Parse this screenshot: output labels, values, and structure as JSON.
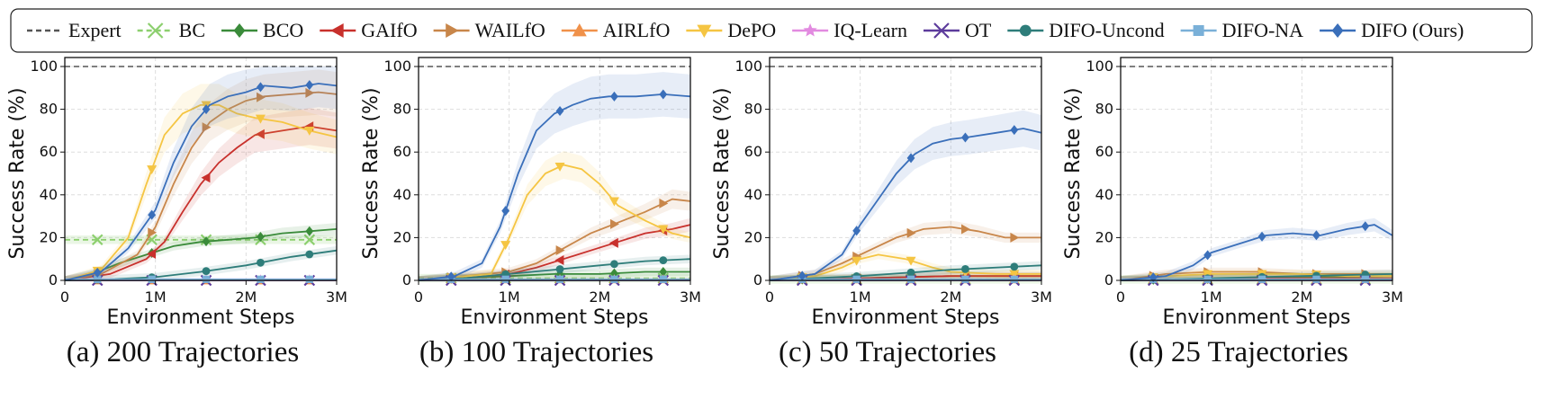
{
  "legend": [
    {
      "name": "Expert",
      "color": "#555555",
      "marker": "none",
      "dash": true
    },
    {
      "name": "BC",
      "color": "#8ccf6e",
      "marker": "x",
      "dash": true
    },
    {
      "name": "BCO",
      "color": "#3a8b3a",
      "marker": "diamond"
    },
    {
      "name": "GAIfO",
      "color": "#c8302c",
      "marker": "tri-left"
    },
    {
      "name": "WAILfO",
      "color": "#c8864a",
      "marker": "tri-right"
    },
    {
      "name": "AIRLfO",
      "color": "#f0914a",
      "marker": "tri-up"
    },
    {
      "name": "DePO",
      "color": "#f5c542",
      "marker": "tri-down"
    },
    {
      "name": "IQ-Learn",
      "color": "#e28ae0",
      "marker": "star"
    },
    {
      "name": "OT",
      "color": "#5c3b9c",
      "marker": "x"
    },
    {
      "name": "DIFO-Uncond",
      "color": "#2e7d7a",
      "marker": "circle"
    },
    {
      "name": "DIFO-NA",
      "color": "#7ab0d8",
      "marker": "square"
    },
    {
      "name": "DIFO (Ours)",
      "color": "#3a6fba",
      "marker": "diamond"
    }
  ],
  "chart_data": [
    {
      "type": "line",
      "title": "(a) 200 Trajectories",
      "xlabel": "Environment Steps",
      "ylabel": "Success Rate (%)",
      "xticks": [
        "0",
        "1M",
        "2M",
        "3M"
      ],
      "yticks": [
        "0",
        "20",
        "40",
        "60",
        "80",
        "100"
      ],
      "xlim": [
        0,
        3
      ],
      "ylim": [
        0,
        100
      ],
      "grid": true,
      "series": [
        {
          "name": "Expert",
          "x": [
            0,
            3
          ],
          "y": [
            100,
            100
          ]
        },
        {
          "name": "BC",
          "x": [
            0,
            3
          ],
          "y": [
            19,
            19
          ]
        },
        {
          "name": "BCO",
          "x": [
            0,
            0.3,
            0.6,
            0.9,
            1.2,
            1.5,
            1.8,
            2.1,
            2.4,
            2.7,
            3.0
          ],
          "y": [
            0,
            3,
            8,
            12,
            16,
            18,
            19,
            20,
            22,
            23,
            24
          ]
        },
        {
          "name": "GAIfO",
          "x": [
            0,
            0.5,
            0.9,
            1.1,
            1.3,
            1.5,
            1.7,
            1.9,
            2.1,
            2.4,
            2.7,
            3.0
          ],
          "y": [
            0,
            3,
            10,
            18,
            32,
            45,
            55,
            62,
            68,
            70,
            72,
            70
          ]
        },
        {
          "name": "WAILfO",
          "x": [
            0,
            0.4,
            0.8,
            1.0,
            1.2,
            1.4,
            1.6,
            1.8,
            2.0,
            2.2,
            2.5,
            2.8,
            3.0
          ],
          "y": [
            0,
            3,
            12,
            25,
            45,
            62,
            74,
            80,
            84,
            86,
            87,
            88,
            87
          ]
        },
        {
          "name": "AIRLfO",
          "x": [
            0,
            3
          ],
          "y": [
            0,
            0
          ]
        },
        {
          "name": "DePO",
          "x": [
            0,
            0.4,
            0.7,
            0.9,
            1.1,
            1.3,
            1.5,
            1.7,
            1.9,
            2.1,
            2.4,
            2.7,
            3.0
          ],
          "y": [
            0,
            5,
            20,
            45,
            68,
            78,
            82,
            82,
            78,
            76,
            74,
            70,
            67
          ]
        },
        {
          "name": "IQ-Learn",
          "x": [
            0,
            3
          ],
          "y": [
            0.5,
            0.5
          ]
        },
        {
          "name": "OT",
          "x": [
            0,
            3
          ],
          "y": [
            0,
            0
          ]
        },
        {
          "name": "DIFO-Uncond",
          "x": [
            0,
            0.5,
            1.0,
            1.5,
            2.0,
            2.5,
            3.0
          ],
          "y": [
            0,
            0.5,
            1.5,
            4,
            7,
            11,
            14
          ]
        },
        {
          "name": "DIFO-NA",
          "x": [
            0,
            3
          ],
          "y": [
            0.5,
            0.5
          ]
        },
        {
          "name": "DIFO (Ours)",
          "x": [
            0,
            0.4,
            0.7,
            1.0,
            1.2,
            1.4,
            1.6,
            1.8,
            2.0,
            2.2,
            2.5,
            2.8,
            3.0
          ],
          "y": [
            0,
            4,
            15,
            33,
            55,
            72,
            82,
            86,
            88,
            91,
            90,
            92,
            91
          ]
        }
      ]
    },
    {
      "type": "line",
      "title": "(b) 100 Trajectories",
      "xlabel": "Environment Steps",
      "ylabel": "Success Rate (%)",
      "xticks": [
        "0",
        "1M",
        "2M",
        "3M"
      ],
      "yticks": [
        "0",
        "20",
        "40",
        "60",
        "80",
        "100"
      ],
      "xlim": [
        0,
        3
      ],
      "ylim": [
        0,
        100
      ],
      "grid": true,
      "series": [
        {
          "name": "Expert",
          "x": [
            0,
            3
          ],
          "y": [
            100,
            100
          ]
        },
        {
          "name": "BC",
          "x": [
            0,
            3
          ],
          "y": [
            1,
            1
          ]
        },
        {
          "name": "BCO",
          "x": [
            0,
            0.5,
            1.0,
            1.5,
            2.0,
            2.5,
            3.0
          ],
          "y": [
            0,
            1,
            2,
            3,
            3,
            4,
            4
          ]
        },
        {
          "name": "GAIfO",
          "x": [
            0,
            0.5,
            1.0,
            1.3,
            1.6,
            1.9,
            2.2,
            2.5,
            2.8,
            3.0
          ],
          "y": [
            0,
            1,
            3,
            6,
            10,
            14,
            18,
            22,
            24,
            26
          ]
        },
        {
          "name": "WAILfO",
          "x": [
            0,
            0.5,
            1.0,
            1.3,
            1.6,
            1.9,
            2.2,
            2.5,
            2.8,
            3.0
          ],
          "y": [
            0,
            2,
            4,
            8,
            15,
            22,
            27,
            32,
            38,
            37
          ]
        },
        {
          "name": "AIRLfO",
          "x": [
            0,
            3
          ],
          "y": [
            0.5,
            0.5
          ]
        },
        {
          "name": "DePO",
          "x": [
            0,
            0.8,
            1.0,
            1.2,
            1.4,
            1.6,
            1.8,
            2.0,
            2.2,
            2.5,
            2.8,
            3.0
          ],
          "y": [
            0,
            3,
            20,
            40,
            50,
            54,
            52,
            45,
            35,
            28,
            22,
            20
          ]
        },
        {
          "name": "IQ-Learn",
          "x": [
            0,
            3
          ],
          "y": [
            0.5,
            0.5
          ]
        },
        {
          "name": "OT",
          "x": [
            0,
            3
          ],
          "y": [
            0,
            0
          ]
        },
        {
          "name": "DIFO-Uncond",
          "x": [
            0,
            0.5,
            1.0,
            1.5,
            2.0,
            2.5,
            3.0
          ],
          "y": [
            0,
            1,
            3,
            5,
            7,
            9,
            10
          ]
        },
        {
          "name": "DIFO-NA",
          "x": [
            0,
            3
          ],
          "y": [
            0.5,
            0.5
          ]
        },
        {
          "name": "DIFO (Ours)",
          "x": [
            0,
            0.4,
            0.7,
            0.9,
            1.1,
            1.3,
            1.5,
            1.7,
            1.9,
            2.1,
            2.4,
            2.7,
            3.0
          ],
          "y": [
            0,
            2,
            8,
            25,
            50,
            70,
            78,
            82,
            85,
            86,
            86,
            87,
            86
          ]
        }
      ]
    },
    {
      "type": "line",
      "title": "(c) 50 Trajectories",
      "xlabel": "Environment Steps",
      "ylabel": "Success Rate (%)",
      "xticks": [
        "0",
        "1M",
        "2M",
        "3M"
      ],
      "yticks": [
        "0",
        "20",
        "40",
        "60",
        "80",
        "100"
      ],
      "xlim": [
        0,
        3
      ],
      "ylim": [
        0,
        100
      ],
      "grid": true,
      "series": [
        {
          "name": "Expert",
          "x": [
            0,
            3
          ],
          "y": [
            100,
            100
          ]
        },
        {
          "name": "BC",
          "x": [
            0,
            3
          ],
          "y": [
            0.5,
            0.5
          ]
        },
        {
          "name": "BCO",
          "x": [
            0,
            1.0,
            2.0,
            3.0
          ],
          "y": [
            0,
            1,
            2,
            2
          ]
        },
        {
          "name": "GAIfO",
          "x": [
            0,
            1.0,
            2.0,
            3.0
          ],
          "y": [
            0,
            1,
            2,
            2
          ]
        },
        {
          "name": "WAILfO",
          "x": [
            0,
            0.5,
            0.8,
            1.1,
            1.4,
            1.7,
            2.0,
            2.3,
            2.6,
            3.0
          ],
          "y": [
            0,
            3,
            8,
            14,
            20,
            24,
            25,
            23,
            20,
            20
          ]
        },
        {
          "name": "AIRLfO",
          "x": [
            0,
            3
          ],
          "y": [
            0.5,
            0.5
          ]
        },
        {
          "name": "DePO",
          "x": [
            0,
            0.5,
            0.8,
            1.0,
            1.2,
            1.5,
            1.8,
            2.0,
            2.5,
            3.0
          ],
          "y": [
            0,
            2,
            6,
            10,
            12,
            10,
            6,
            4,
            3,
            3
          ]
        },
        {
          "name": "IQ-Learn",
          "x": [
            0,
            3
          ],
          "y": [
            0.5,
            0.5
          ]
        },
        {
          "name": "OT",
          "x": [
            0,
            3
          ],
          "y": [
            0,
            0
          ]
        },
        {
          "name": "DIFO-Uncond",
          "x": [
            0,
            1.0,
            2.0,
            3.0
          ],
          "y": [
            0,
            2,
            5,
            7
          ]
        },
        {
          "name": "DIFO-NA",
          "x": [
            0,
            3
          ],
          "y": [
            0.5,
            0.5
          ]
        },
        {
          "name": "DIFO (Ours)",
          "x": [
            0,
            0.5,
            0.8,
            1.0,
            1.2,
            1.4,
            1.6,
            1.8,
            2.0,
            2.2,
            2.5,
            2.8,
            3.0
          ],
          "y": [
            0,
            3,
            12,
            26,
            38,
            50,
            59,
            64,
            66,
            67,
            69,
            71,
            69
          ]
        }
      ]
    },
    {
      "type": "line",
      "title": "(d) 25 Trajectories",
      "xlabel": "Environment Steps",
      "ylabel": "Success Rate (%)",
      "xticks": [
        "0",
        "1M",
        "2M",
        "3M"
      ],
      "yticks": [
        "0",
        "20",
        "40",
        "60",
        "80",
        "100"
      ],
      "xlim": [
        0,
        3
      ],
      "ylim": [
        0,
        100
      ],
      "grid": true,
      "series": [
        {
          "name": "Expert",
          "x": [
            0,
            3
          ],
          "y": [
            100,
            100
          ]
        },
        {
          "name": "BC",
          "x": [
            0,
            3
          ],
          "y": [
            0.5,
            0.5
          ]
        },
        {
          "name": "BCO",
          "x": [
            0,
            1.5,
            3.0
          ],
          "y": [
            0,
            1,
            2
          ]
        },
        {
          "name": "GAIfO",
          "x": [
            0,
            1.5,
            3.0
          ],
          "y": [
            0,
            1,
            1
          ]
        },
        {
          "name": "WAILfO",
          "x": [
            0,
            0.5,
            1.0,
            1.5,
            2.0,
            2.5,
            3.0
          ],
          "y": [
            0,
            3,
            4,
            4,
            3,
            3,
            3
          ]
        },
        {
          "name": "AIRLfO",
          "x": [
            0,
            3
          ],
          "y": [
            0.5,
            0.5
          ]
        },
        {
          "name": "DePO",
          "x": [
            0,
            0.5,
            1.0,
            1.5,
            2.0,
            2.5,
            3.0
          ],
          "y": [
            0,
            2,
            3,
            3,
            3,
            2,
            2
          ]
        },
        {
          "name": "IQ-Learn",
          "x": [
            0,
            3
          ],
          "y": [
            0.5,
            0.5
          ]
        },
        {
          "name": "OT",
          "x": [
            0,
            3
          ],
          "y": [
            0,
            0
          ]
        },
        {
          "name": "DIFO-Uncond",
          "x": [
            0,
            1.0,
            2.0,
            3.0
          ],
          "y": [
            0,
            1,
            2,
            3
          ]
        },
        {
          "name": "DIFO-NA",
          "x": [
            0,
            3
          ],
          "y": [
            0.5,
            0.5
          ]
        },
        {
          "name": "DIFO (Ours)",
          "x": [
            0,
            0.5,
            0.8,
            1.0,
            1.3,
            1.6,
            1.9,
            2.2,
            2.5,
            2.8,
            3.0
          ],
          "y": [
            0,
            2,
            7,
            13,
            17,
            21,
            22,
            21,
            24,
            26,
            21
          ]
        }
      ]
    }
  ]
}
